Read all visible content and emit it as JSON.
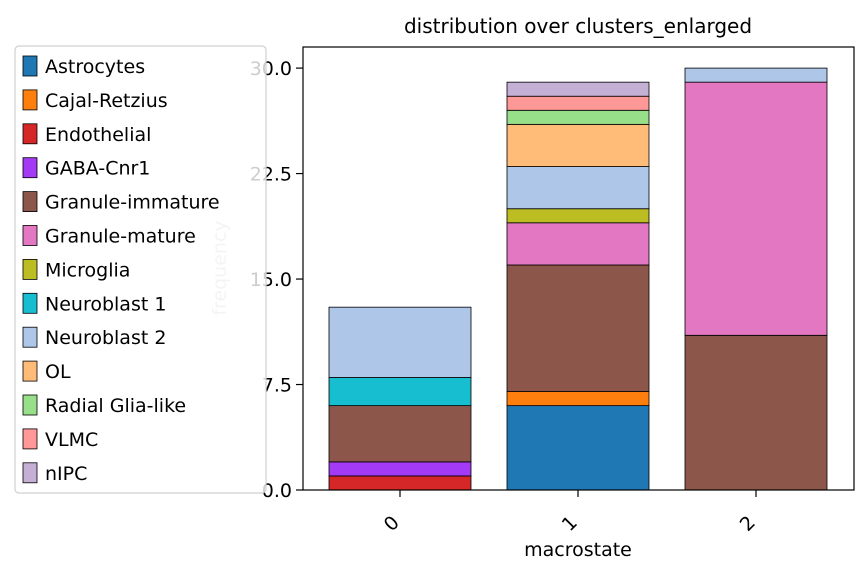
{
  "chart_data": {
    "type": "bar",
    "stacked": true,
    "title": "distribution over clusters_enlarged",
    "xlabel": "macrostate",
    "ylabel": "frequency",
    "categories": [
      "0",
      "1",
      "2"
    ],
    "ylim": [
      0,
      31.5
    ],
    "yticks": [
      0.0,
      7.5,
      15.0,
      22.5,
      30.0
    ],
    "ytick_labels": [
      "0.0",
      "7.5",
      "15.0",
      "22.5",
      "30.0"
    ],
    "grid": false,
    "legend_position": "left, outside plot",
    "series": [
      {
        "name": "Astrocytes",
        "color": "#1f77b4",
        "values": [
          0,
          6,
          0
        ]
      },
      {
        "name": "Cajal-Retzius",
        "color": "#ff7f0e",
        "values": [
          0,
          1,
          0
        ]
      },
      {
        "name": "Endothelial",
        "color": "#d62728",
        "values": [
          1,
          0,
          0
        ]
      },
      {
        "name": "GABA-Cnr1",
        "color": "#a33af5",
        "values": [
          1,
          0,
          0
        ]
      },
      {
        "name": "Granule-immature",
        "color": "#8c564b",
        "values": [
          4,
          9,
          11
        ]
      },
      {
        "name": "Granule-mature",
        "color": "#e377c2",
        "values": [
          0,
          3,
          18
        ]
      },
      {
        "name": "Microglia",
        "color": "#bcbd22",
        "values": [
          0,
          1,
          0
        ]
      },
      {
        "name": "Neuroblast 1",
        "color": "#17becf",
        "values": [
          2,
          0,
          0
        ]
      },
      {
        "name": "Neuroblast 2",
        "color": "#aec7e8",
        "values": [
          5,
          3,
          1
        ]
      },
      {
        "name": "OL",
        "color": "#ffbb78",
        "values": [
          0,
          3,
          0
        ]
      },
      {
        "name": "Radial Glia-like",
        "color": "#98df8a",
        "values": [
          0,
          1,
          0
        ]
      },
      {
        "name": "VLMC",
        "color": "#ff9896",
        "values": [
          0,
          1,
          0
        ]
      },
      {
        "name": "nIPC",
        "color": "#c5b0d5",
        "values": [
          0,
          1,
          0
        ]
      }
    ]
  }
}
